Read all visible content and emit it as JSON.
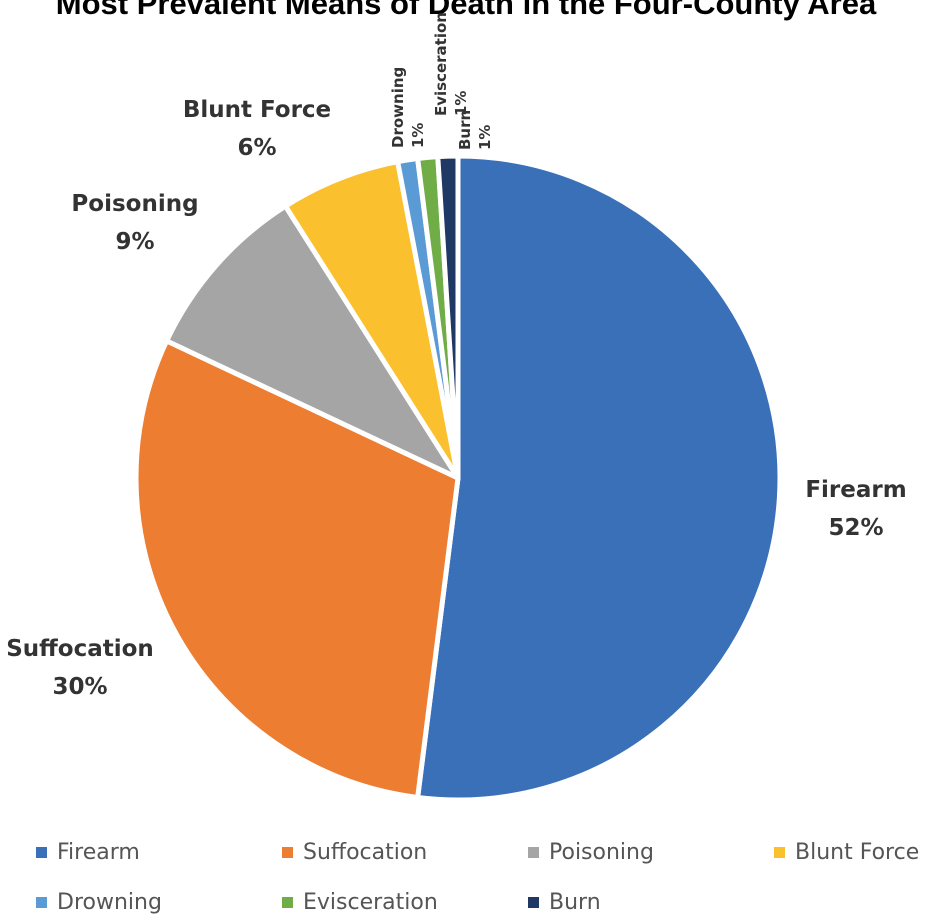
{
  "chart_data": {
    "type": "pie",
    "title": "Most Prevalent Means of Death in the Four-County Area",
    "categories": [
      "Firearm",
      "Suffocation",
      "Poisoning",
      "Blunt Force",
      "Drowning",
      "Evisceration",
      "Burn"
    ],
    "values": [
      52,
      30,
      9,
      6,
      1,
      1,
      1
    ],
    "value_labels": [
      "52%",
      "30%",
      "9%",
      "6%",
      "1%",
      "1%",
      "1%"
    ],
    "colors": [
      "#3a70b8",
      "#ed7d31",
      "#a5a5a5",
      "#fbc02d",
      "#5b9bd5",
      "#70ad47",
      "#1f3864"
    ],
    "legend_position": "bottom"
  }
}
